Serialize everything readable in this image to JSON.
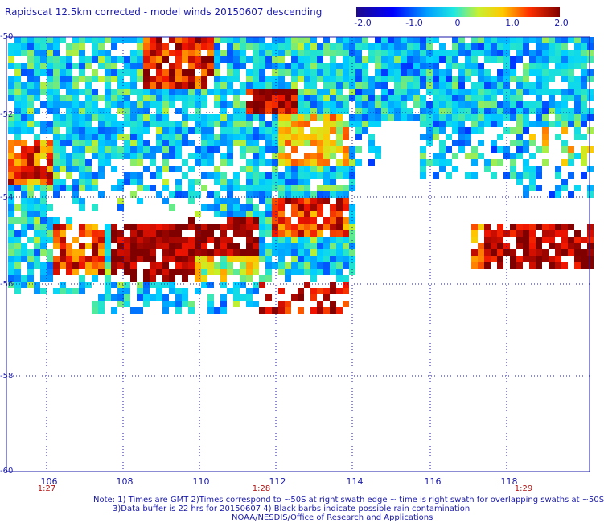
{
  "title": "Rapidscat 12.5km corrected - model winds 20150607 descending",
  "colorbar": {
    "labels": [
      "-2.0",
      "-1.0",
      "0",
      "1.0",
      "2.0"
    ],
    "min": -2.0,
    "max": 2.0
  },
  "axes": {
    "lat_labels": [
      "-50",
      "-52",
      "-54",
      "-56",
      "-58",
      "-60"
    ],
    "lon_labels": [
      "106",
      "108",
      "110",
      "112",
      "114",
      "116",
      "118"
    ],
    "time_labels": [
      "1:27",
      "1:28",
      "1:29"
    ]
  },
  "notes": {
    "line1": "Note: 1) Times are GMT 2)Times correspond to ~50S at right swath edge ~ time is right swath for overlapping swaths at ~50S",
    "line2": "3)Data buffer is 22 hrs for 20150607 4) Black barbs indicate possible rain contamination",
    "line3": "NOAA/NESDIS/Office of Research and Applications"
  },
  "colors": {
    "text": "#1a1aa8",
    "time_text": "#b01010",
    "grid": "#1a1aa8"
  }
}
